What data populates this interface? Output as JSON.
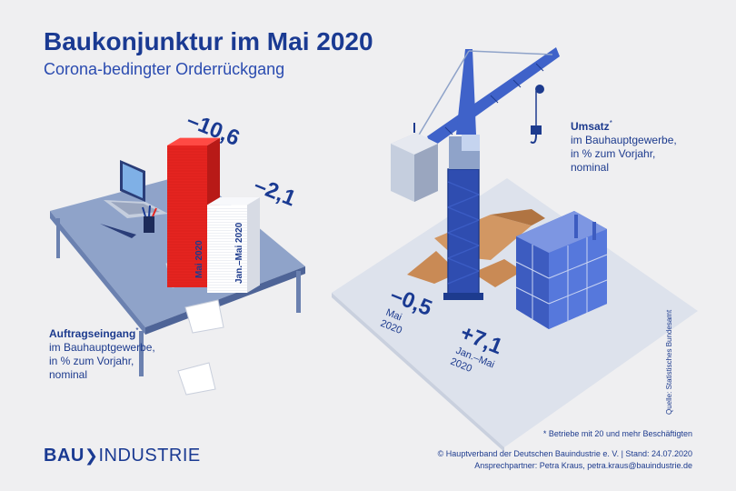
{
  "header": {
    "title": "Baukonjunktur im Mai 2020",
    "subtitle": "Corona-bedingter Orderrückgang"
  },
  "orders": {
    "heading": "Auftragseingang",
    "marker": "*",
    "line1": "im Bauhauptgewerbe,",
    "line2": "in % zum Vorjahr,",
    "line3": "nominal"
  },
  "revenue": {
    "heading": "Umsatz",
    "marker": "*",
    "line1": "im Bauhauptgewerbe,",
    "line2": "in % zum Vorjahr,",
    "line3": "nominal"
  },
  "chart_data": [
    {
      "type": "bar",
      "title": "Auftragseingang",
      "categories": [
        "Mai 2020",
        "Jan.–Mai 2020"
      ],
      "values": [
        -10.6,
        -2.1
      ],
      "value_labels": [
        "–10,6",
        "–2,1"
      ],
      "colors": [
        "#e52420",
        "#ffffff"
      ]
    },
    {
      "type": "bar",
      "title": "Umsatz",
      "categories": [
        "Mai 2020",
        "Jan.–Mai 2020"
      ],
      "category_lines": [
        [
          "Mai",
          "2020"
        ],
        [
          "Jan.–Mai",
          "2020"
        ]
      ],
      "values": [
        -0.5,
        7.1
      ],
      "value_labels": [
        "–0,5",
        "+7,1"
      ]
    }
  ],
  "footer": {
    "footnote": "* Betriebe mit 20 und mehr Beschäftigten",
    "copyright": "© Hauptverband der Deutschen Bauindustrie e. V. | Stand: 24.07.2020",
    "contact": "Ansprechpartner: Petra Kraus, petra.kraus@bauindustrie.de",
    "source": "Quelle: Statistisches Bundesamt",
    "logo_bold": "BAU",
    "logo_light": "INDUSTRIE"
  },
  "colors": {
    "brand_blue": "#1a3a92",
    "red": "#e52420",
    "background": "#efeff1"
  }
}
